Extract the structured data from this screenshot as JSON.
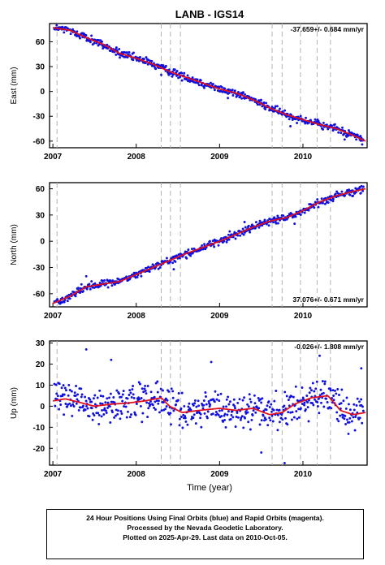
{
  "footer": {
    "line1": "24 Hour Positions Using Final Orbits (blue) and Rapid Orbits (magenta).",
    "line2": "Processed by the Nevada Geodetic Laboratory.",
    "line3": "Plotted on 2025-Apr-29. Last data on 2010-Oct-05."
  },
  "colors": {
    "data": "#1010e0",
    "fit": "#e0101c",
    "events": "#b4b4b4"
  },
  "chart_data": [
    {
      "type": "scatter",
      "title": "LANB - IGS14",
      "ylabel": "East (mm)",
      "xlabel": "",
      "xlim": [
        2006.96,
        2010.77
      ],
      "ylim": [
        -68,
        82
      ],
      "x_ticks": [
        2007,
        2008,
        2009,
        2010
      ],
      "y_ticks": [
        -60,
        -30,
        0,
        30,
        60
      ],
      "rate_label": "-37.659+/- 0.684 mm/yr",
      "rate_position": "top-right",
      "event_lines": [
        2007.05,
        2008.3,
        2008.41,
        2008.53,
        2009.63,
        2009.75,
        2009.97,
        2010.17,
        2010.33
      ],
      "trend": {
        "x": [
          2007.0,
          2007.2,
          2007.4,
          2007.6,
          2007.8,
          2008.0,
          2008.2,
          2008.4,
          2008.6,
          2008.8,
          2009.0,
          2009.2,
          2009.4,
          2009.6,
          2009.8,
          2010.0,
          2010.2,
          2010.4,
          2010.6,
          2010.75
        ],
        "y": [
          77,
          74,
          65,
          57,
          46,
          40,
          33,
          24,
          17,
          10,
          3,
          -2,
          -10,
          -20,
          -28,
          -34,
          -40,
          -45,
          -53,
          -60
        ]
      },
      "noise": 3.5,
      "outliers": {
        "x": [
          2007.6,
          2008.3,
          2009.1,
          2009.85,
          2010.5
        ],
        "y": [
          52,
          20,
          -8,
          -42,
          -58
        ]
      }
    },
    {
      "type": "scatter",
      "title": "",
      "ylabel": "North (mm)",
      "xlabel": "",
      "xlim": [
        2006.96,
        2010.77
      ],
      "ylim": [
        -75,
        67
      ],
      "x_ticks": [
        2007,
        2008,
        2009,
        2010
      ],
      "y_ticks": [
        -60,
        -30,
        0,
        30,
        60
      ],
      "rate_label": "37.076+/- 0.671 mm/yr",
      "rate_position": "bottom-right",
      "event_lines": [
        2007.05,
        2008.3,
        2008.41,
        2008.53,
        2009.63,
        2009.75,
        2009.97,
        2010.17,
        2010.33
      ],
      "trend": {
        "x": [
          2007.0,
          2007.2,
          2007.4,
          2007.6,
          2007.8,
          2008.0,
          2008.2,
          2008.4,
          2008.6,
          2008.8,
          2009.0,
          2009.2,
          2009.4,
          2009.6,
          2009.8,
          2010.0,
          2010.2,
          2010.4,
          2010.6,
          2010.75
        ],
        "y": [
          -71,
          -63,
          -52,
          -49,
          -46,
          -38,
          -30,
          -22,
          -14,
          -7,
          0,
          8,
          16,
          23,
          27,
          35,
          45,
          52,
          57,
          60
        ]
      },
      "noise": 3.5,
      "outliers": {
        "x": [
          2007.4,
          2008.45,
          2009.3,
          2009.9,
          2010.6
        ],
        "y": [
          -40,
          -32,
          22,
          20,
          52
        ]
      }
    },
    {
      "type": "scatter",
      "title": "",
      "ylabel": "Up (mm)",
      "xlabel": "Time (year)",
      "xlim": [
        2006.96,
        2010.77
      ],
      "ylim": [
        -28,
        31
      ],
      "x_ticks": [
        2007,
        2008,
        2009,
        2010
      ],
      "y_ticks": [
        -20,
        -10,
        0,
        10,
        20,
        30
      ],
      "rate_label": "-0.026+/- 1.808 mm/yr",
      "rate_position": "top-right",
      "event_lines": [
        2007.05,
        2008.3,
        2008.41,
        2008.53,
        2009.63,
        2009.75,
        2009.97,
        2010.17,
        2010.33
      ],
      "trend": {
        "x": [
          2007.0,
          2007.15,
          2007.3,
          2007.5,
          2007.7,
          2007.9,
          2008.1,
          2008.3,
          2008.4,
          2008.55,
          2008.75,
          2009.0,
          2009.2,
          2009.4,
          2009.6,
          2009.75,
          2009.9,
          2010.1,
          2010.3,
          2010.45,
          2010.6,
          2010.75
        ],
        "y": [
          2.5,
          3.5,
          2.0,
          0,
          1,
          1.5,
          2.5,
          4,
          0,
          -3,
          -2,
          -1,
          -2,
          -1,
          -4,
          -3,
          1,
          4,
          5,
          -2,
          -4,
          -3
        ]
      },
      "noise": 6.5,
      "outliers": {
        "x": [
          2007.4,
          2007.7,
          2008.9,
          2009.5,
          2009.78,
          2010.2,
          2010.7
        ],
        "y": [
          27,
          22,
          21,
          -22,
          -27,
          24,
          18
        ]
      }
    }
  ]
}
